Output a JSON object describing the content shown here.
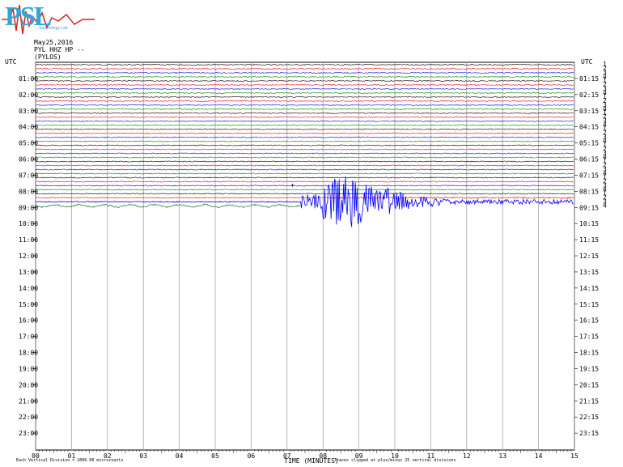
{
  "header": {
    "date": "May25,2016",
    "station": "PYL HHZ HP --",
    "station_name": "(PYLOS)",
    "logo_letters": "PSL",
    "logo_subtext": "Seismology Lab"
  },
  "footer": {
    "vertical_division": "Each Vertical Division = 2000.00 microcounts",
    "clip_note": "Traces clipped at plus/minus 25 vertical divisions"
  },
  "chart_data": {
    "type": "line",
    "title": "",
    "xlabel": "TIME (MINUTES)",
    "left_axis_label": "UTC",
    "right_axis_label": "UTC",
    "xlim": [
      0,
      15
    ],
    "x_ticks": [
      "00",
      "01",
      "02",
      "03",
      "04",
      "05",
      "06",
      "07",
      "08",
      "09",
      "10",
      "11",
      "12",
      "13",
      "14",
      "15"
    ],
    "left_hour_labels": [
      "01:00",
      "02:00",
      "03:00",
      "04:00",
      "05:00",
      "06:00",
      "07:00",
      "08:00",
      "09:00",
      "10:00",
      "11:00",
      "12:00",
      "13:00",
      "14:00",
      "15:00",
      "16:00",
      "17:00",
      "18:00",
      "19:00",
      "20:00",
      "21:00",
      "22:00",
      "23:00"
    ],
    "right_hour_labels": [
      "01:15",
      "02:15",
      "03:15",
      "04:15",
      "05:15",
      "06:15",
      "07:15",
      "08:15",
      "09:15",
      "10:15",
      "11:15",
      "12:15",
      "13:15",
      "14:15",
      "15:15",
      "16:15",
      "17:15",
      "18:15",
      "19:15",
      "20:15",
      "21:15",
      "22:15",
      "23:15"
    ],
    "trace_interval_minutes": 15,
    "trace_colors": [
      "#000000",
      "#ff0000",
      "#0000ff",
      "#008000"
    ],
    "traces_recorded": 36,
    "event": {
      "trace_hour": "08:45",
      "onset_minute": 7.4,
      "peak_minute": 9.1,
      "color": "#0000ff"
    },
    "grid": true
  }
}
